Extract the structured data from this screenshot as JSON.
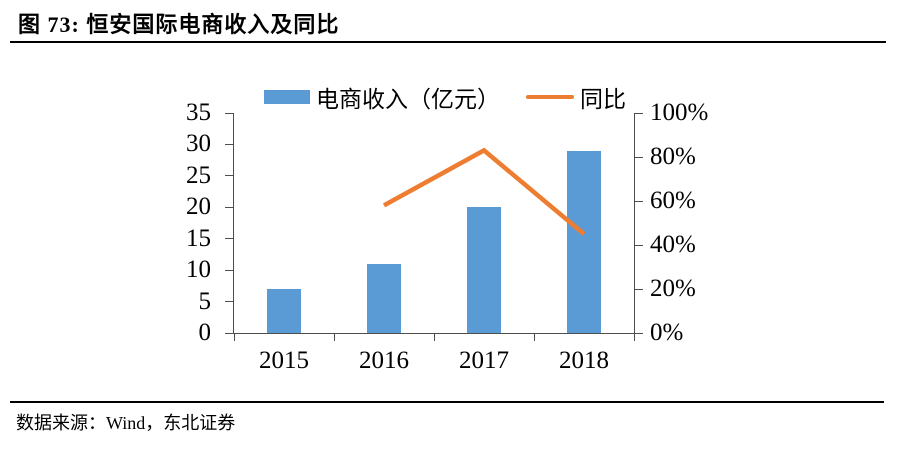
{
  "header": {
    "title": "图 73:  恒安国际电商收入及同比"
  },
  "footer": {
    "source": "数据来源：Wind，东北证券"
  },
  "colors": {
    "bar": "#5B9BD5",
    "line": "#ED7D31",
    "axis": "#4d4d4d",
    "text": "#000000"
  },
  "legend": [
    {
      "label": "电商收入（亿元）",
      "type": "bar",
      "color": "#5B9BD5"
    },
    {
      "label": "同比",
      "type": "line",
      "color": "#ED7D31"
    }
  ],
  "chart_data": {
    "type": "combo",
    "title": "恒安国际电商收入及同比",
    "categories": [
      "2015",
      "2016",
      "2017",
      "2018"
    ],
    "series": [
      {
        "name": "电商收入（亿元）",
        "type": "bar",
        "axis": "left",
        "values": [
          7,
          11,
          20,
          29
        ]
      },
      {
        "name": "同比",
        "type": "line",
        "axis": "right",
        "values": [
          null,
          58,
          83,
          45
        ]
      }
    ],
    "left_axis": {
      "min": 0,
      "max": 35,
      "ticks": [
        0,
        5,
        10,
        15,
        20,
        25,
        30,
        35
      ]
    },
    "right_axis": {
      "min": 0,
      "max": 100,
      "tick_labels": [
        "0%",
        "20%",
        "40%",
        "60%",
        "80%",
        "100%"
      ]
    },
    "grid": false,
    "legend_position": "top"
  }
}
